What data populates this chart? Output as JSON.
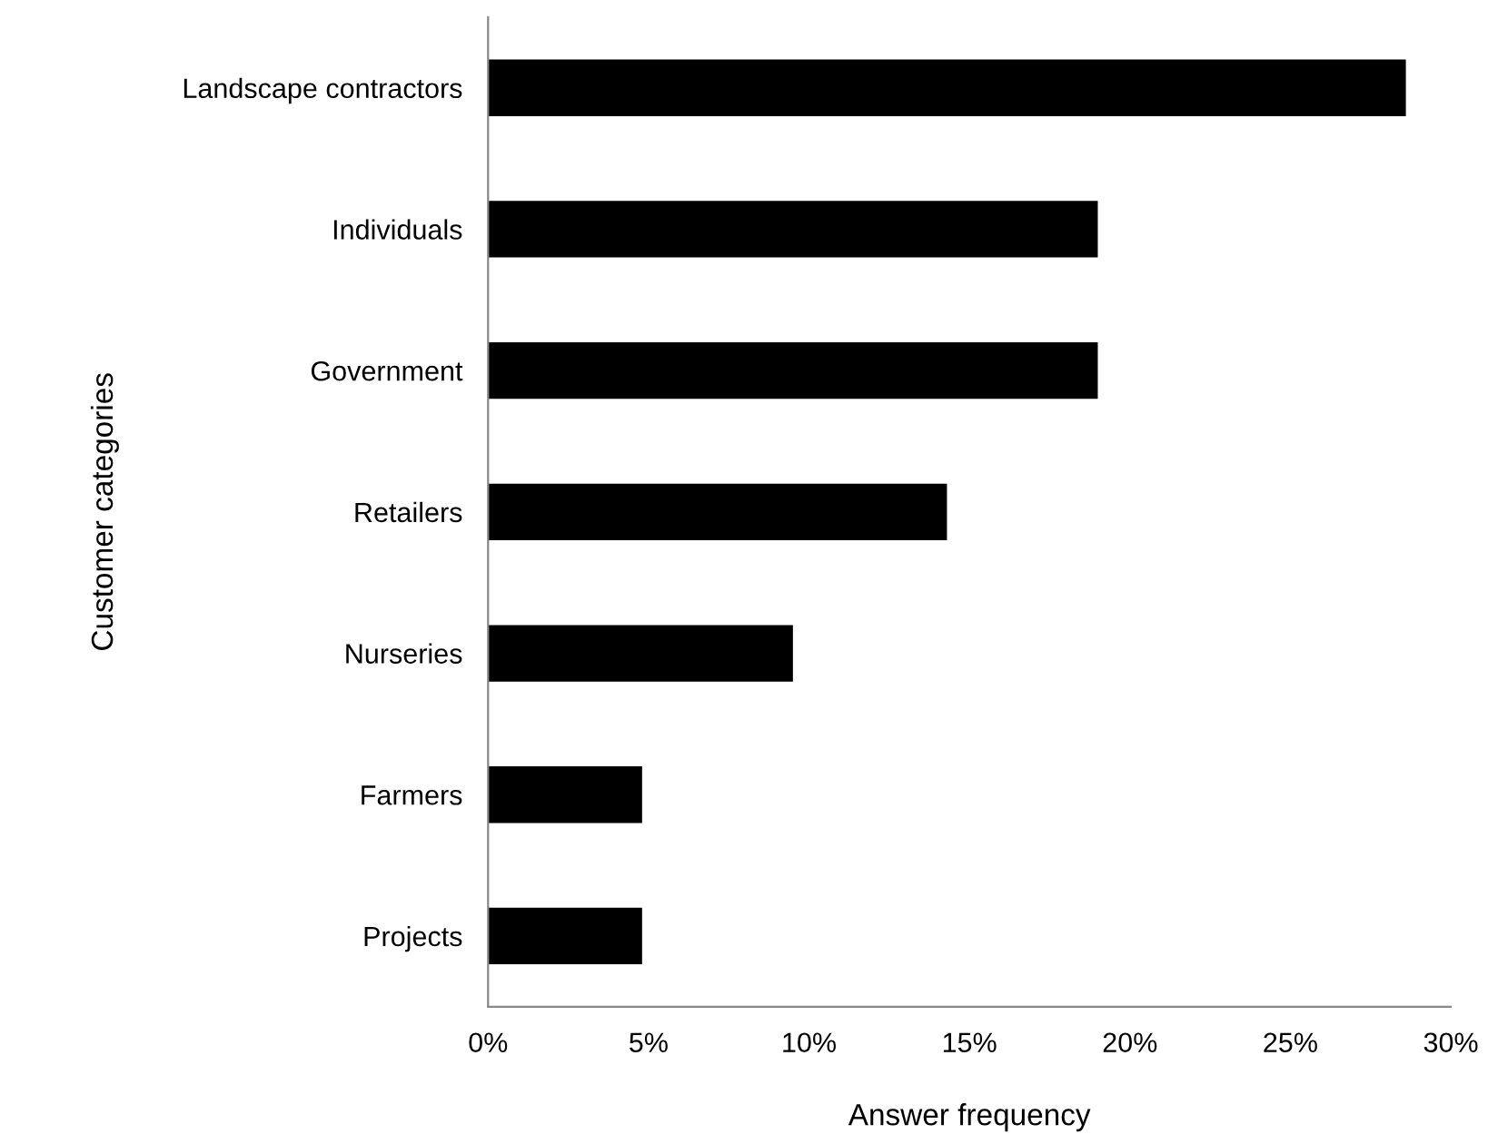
{
  "chart_data": {
    "type": "bar",
    "orientation": "horizontal",
    "xlabel": "Answer frequency",
    "ylabel": "Customer categories",
    "categories": [
      "Landscape contractors",
      "Individuals",
      "Government",
      "Retailers",
      "Nurseries",
      "Farmers",
      "Projects"
    ],
    "values": [
      28.6,
      19.0,
      19.0,
      14.3,
      9.5,
      4.8,
      4.8
    ],
    "color": "#000000",
    "xlim": [
      0,
      30
    ],
    "xticks": [
      {
        "value": 0,
        "label": "0%"
      },
      {
        "value": 5,
        "label": "5%"
      },
      {
        "value": 10,
        "label": "10%"
      },
      {
        "value": 15,
        "label": "15%"
      },
      {
        "value": 20,
        "label": "20%"
      },
      {
        "value": 25,
        "label": "25%"
      },
      {
        "value": 30,
        "label": "30%"
      }
    ],
    "grid": false,
    "legend": false
  }
}
